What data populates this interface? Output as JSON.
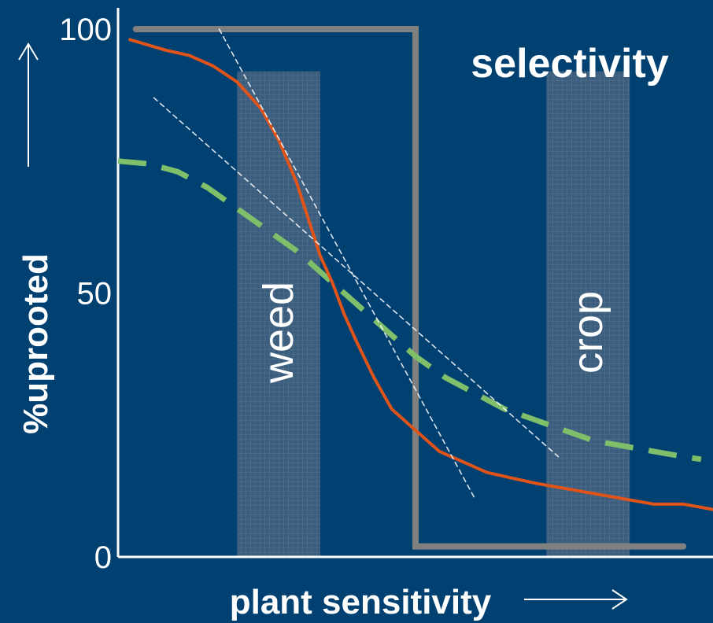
{
  "chart_data": {
    "type": "line",
    "title": "selectivity",
    "xlabel": "plant sensitivity",
    "ylabel": "%uprooted",
    "ylim": [
      0,
      100
    ],
    "yticks": [
      {
        "value": 100,
        "label": "100"
      },
      {
        "value": 50,
        "label": "50"
      },
      {
        "value": 0,
        "label": "0"
      }
    ],
    "bands": [
      {
        "label": "weed",
        "x_range": [
          0.2,
          0.34
        ],
        "top": 92
      },
      {
        "label": "crop",
        "x_range": [
          0.72,
          0.86
        ],
        "top": 92
      }
    ],
    "series": [
      {
        "style": "solid-orange",
        "color": "#e0541a",
        "x": [
          0.02,
          0.05,
          0.08,
          0.12,
          0.16,
          0.2,
          0.24,
          0.27,
          0.3,
          0.32,
          0.34,
          0.36,
          0.38,
          0.4,
          0.43,
          0.46,
          0.5,
          0.54,
          0.58,
          0.62,
          0.66,
          0.7,
          0.75,
          0.8,
          0.85,
          0.9,
          0.95,
          1.0
        ],
        "y": [
          98,
          97,
          96,
          95,
          93,
          90,
          85,
          79,
          71,
          64,
          57,
          52,
          46,
          41,
          34,
          28,
          24,
          20,
          18,
          16,
          15,
          14,
          13,
          12,
          11,
          10,
          10,
          9
        ]
      },
      {
        "style": "dashed-green",
        "color": "#7fbf6a",
        "x": [
          0.0,
          0.05,
          0.1,
          0.15,
          0.2,
          0.25,
          0.3,
          0.35,
          0.4,
          0.45,
          0.5,
          0.55,
          0.6,
          0.65,
          0.7,
          0.75,
          0.8,
          0.85,
          0.9,
          0.95,
          0.98
        ],
        "y": [
          75,
          74.5,
          73,
          70,
          66,
          62,
          58,
          53,
          48,
          43,
          38,
          34,
          31,
          28,
          26,
          24,
          22,
          21,
          20,
          19,
          18.5
        ]
      },
      {
        "style": "step-gray",
        "color": "#808080",
        "x": [
          0.03,
          0.5,
          0.5,
          0.95
        ],
        "y": [
          100,
          100,
          2,
          2
        ]
      },
      {
        "style": "tangent-white-dashed-1",
        "color": "#ffffff",
        "x": [
          0.17,
          0.6
        ],
        "y": [
          100,
          11
        ]
      },
      {
        "style": "tangent-white-dashed-2",
        "color": "#ffffff",
        "x": [
          0.06,
          0.74
        ],
        "y": [
          87,
          19
        ]
      }
    ]
  }
}
